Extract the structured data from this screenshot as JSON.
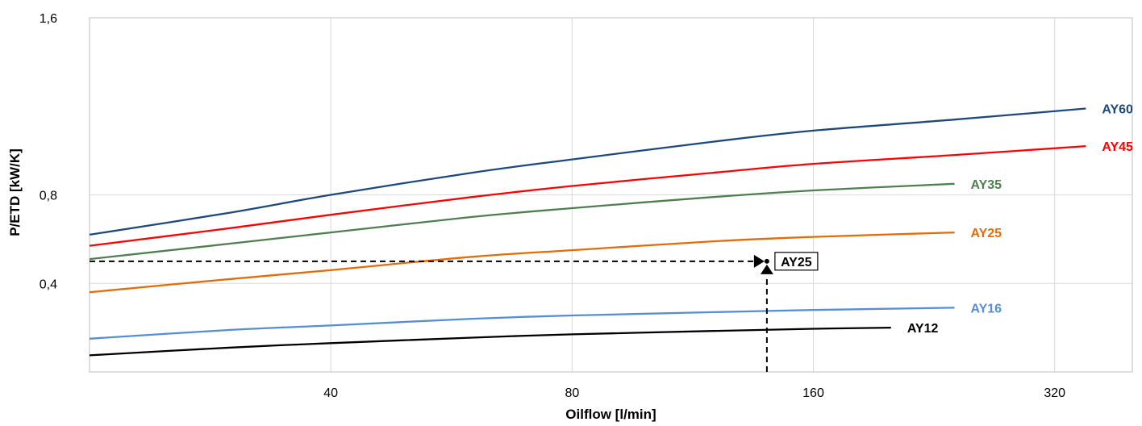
{
  "chart_data": {
    "type": "line",
    "xlabel": "Oilflow [l/min]",
    "ylabel": "P/ETD [kW/K]",
    "x_scale": "log2",
    "xlim": [
      20,
      400
    ],
    "ylim": [
      0,
      1.6
    ],
    "x_ticks": [
      {
        "value": 40,
        "label": "40"
      },
      {
        "value": 80,
        "label": "80"
      },
      {
        "value": 160,
        "label": "160"
      },
      {
        "value": 320,
        "label": "320"
      }
    ],
    "y_ticks": [
      {
        "value": 0.4,
        "label": "0,4"
      },
      {
        "value": 0.8,
        "label": "0,8"
      },
      {
        "value": 1.6,
        "label": "1,6"
      }
    ],
    "grid": "vertical and horizontal",
    "series": [
      {
        "name": "AY60",
        "color": "#1f497d",
        "x": [
          20,
          30,
          40,
          60,
          80,
          120,
          160,
          240,
          350
        ],
        "y": [
          0.62,
          0.72,
          0.8,
          0.9,
          0.96,
          1.04,
          1.09,
          1.14,
          1.19
        ]
      },
      {
        "name": "AY45",
        "color": "#ff0000",
        "x": [
          20,
          30,
          40,
          60,
          80,
          120,
          160,
          240,
          350
        ],
        "y": [
          0.57,
          0.65,
          0.71,
          0.79,
          0.84,
          0.9,
          0.94,
          0.98,
          1.02
        ]
      },
      {
        "name": "AY35",
        "color": "#4f7f4f",
        "x": [
          20,
          30,
          40,
          60,
          80,
          120,
          160,
          240
        ],
        "y": [
          0.51,
          0.58,
          0.63,
          0.7,
          0.74,
          0.79,
          0.82,
          0.85
        ]
      },
      {
        "name": "AY25",
        "color": "#e36c09",
        "x": [
          20,
          30,
          40,
          60,
          80,
          120,
          160,
          240
        ],
        "y": [
          0.36,
          0.42,
          0.46,
          0.52,
          0.55,
          0.59,
          0.61,
          0.63
        ]
      },
      {
        "name": "AY16",
        "color": "#558ed5",
        "x": [
          20,
          30,
          40,
          60,
          80,
          120,
          160,
          240
        ],
        "y": [
          0.15,
          0.19,
          0.21,
          0.24,
          0.255,
          0.27,
          0.28,
          0.29
        ]
      },
      {
        "name": "AY12",
        "color": "#000000",
        "x": [
          20,
          30,
          40,
          60,
          80,
          120,
          160,
          200
        ],
        "y": [
          0.075,
          0.11,
          0.13,
          0.155,
          0.17,
          0.185,
          0.195,
          0.2
        ]
      }
    ],
    "example_point": {
      "label": "AY25",
      "x": 140,
      "y": 0.5
    }
  }
}
